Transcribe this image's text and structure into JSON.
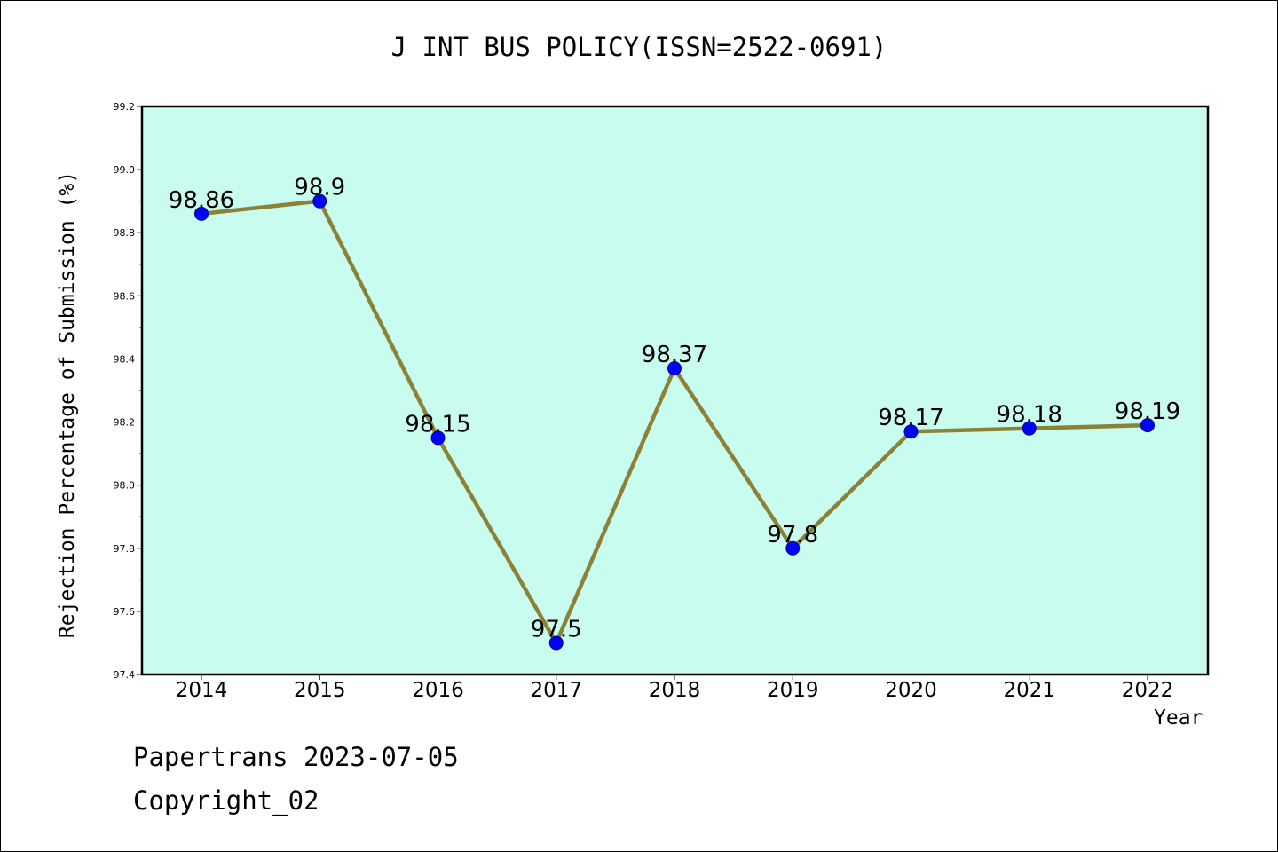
{
  "chart_data": {
    "type": "line",
    "title": "J INT BUS POLICY(ISSN=2522-0691)",
    "xlabel": "Year",
    "ylabel": "Rejection Percentage of Submission (%)",
    "categories": [
      "2014",
      "2015",
      "2016",
      "2017",
      "2018",
      "2019",
      "2020",
      "2021",
      "2022"
    ],
    "series": [
      {
        "values": [
          98.86,
          98.9,
          98.15,
          97.5,
          98.37,
          97.8,
          98.17,
          98.18,
          98.19
        ],
        "labels": [
          "98.86",
          "98.9",
          "98.15",
          "97.5",
          "98.37",
          "97.8",
          "98.17",
          "98.18",
          "98.19"
        ]
      }
    ],
    "ylim": [
      97.4,
      99.2
    ],
    "yticks": [
      "97.4",
      "97.6",
      "97.8",
      "98.0",
      "98.2",
      "98.4",
      "98.6",
      "98.8",
      "99.0",
      "99.2"
    ],
    "grid": false,
    "colors": {
      "plot_background": "#c8fcee",
      "line": "#8b8237",
      "marker": "#0000ff"
    }
  },
  "footer": {
    "line1": "Papertrans 2023-07-05",
    "line2": "Copyright_02"
  }
}
